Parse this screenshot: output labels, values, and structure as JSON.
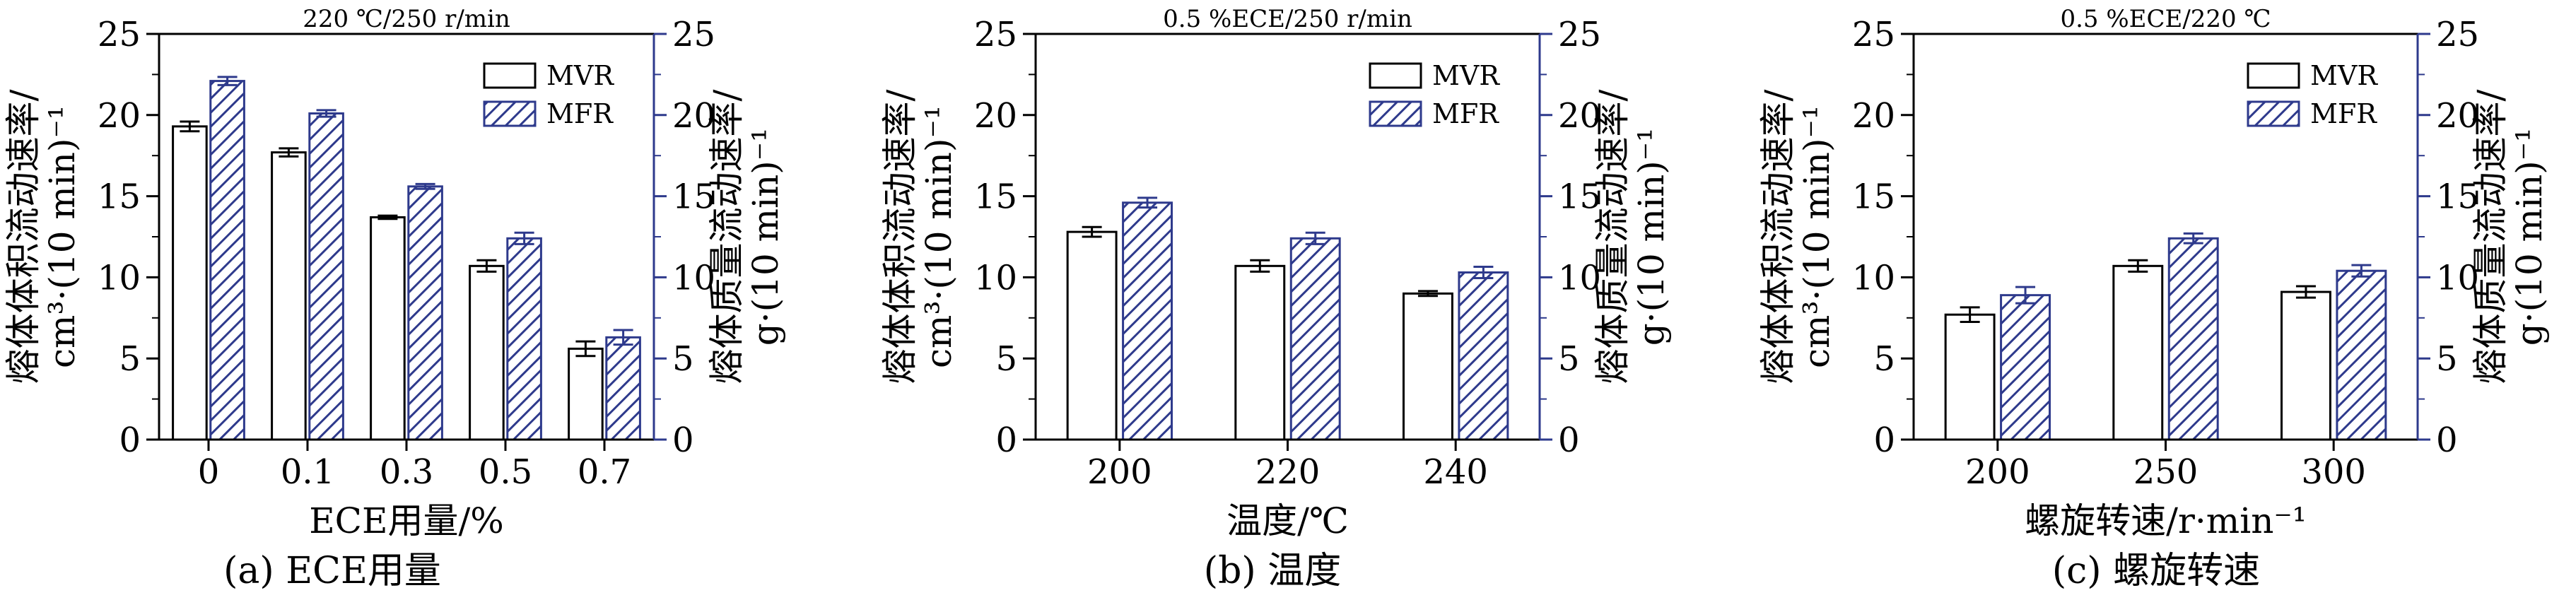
{
  "chart_data": [
    {
      "type": "bar",
      "panel_label": "(a) ECE用量",
      "title": "220 ℃/250 r/min",
      "xlabel": "ECE用量/%",
      "ylabel_left_line1": "熔体体积流动速率/",
      "ylabel_left_line2": "cm³·(10 min)⁻¹",
      "ylabel_right_line1": "熔体质量流动速率/",
      "ylabel_right_line2": "g·(10 min)⁻¹",
      "categories": [
        "0",
        "0.1",
        "0.3",
        "0.5",
        "0.7"
      ],
      "ylim": [
        0,
        25
      ],
      "yticks": [
        "0",
        "5",
        "10",
        "15",
        "20",
        "25"
      ],
      "legend": [
        "MVR",
        "MFR"
      ],
      "series": [
        {
          "name": "MVR",
          "axis": "left",
          "values": [
            19.3,
            17.7,
            13.7,
            10.7,
            5.6
          ],
          "errors": [
            0.3,
            0.25,
            0.1,
            0.35,
            0.45
          ]
        },
        {
          "name": "MFR",
          "axis": "right",
          "values": [
            22.1,
            20.1,
            15.6,
            12.4,
            6.3
          ],
          "errors": [
            0.25,
            0.2,
            0.15,
            0.35,
            0.45
          ]
        }
      ]
    },
    {
      "type": "bar",
      "panel_label": "(b) 温度",
      "title": "0.5 %ECE/250 r/min",
      "xlabel": "温度/℃",
      "ylabel_left_line1": "熔体体积流动速率/",
      "ylabel_left_line2": "cm³·(10 min)⁻¹",
      "ylabel_right_line1": "熔体质量流动速率/",
      "ylabel_right_line2": "g·(10 min)⁻¹",
      "categories": [
        "200",
        "220",
        "240"
      ],
      "ylim": [
        0,
        25
      ],
      "yticks": [
        "0",
        "5",
        "10",
        "15",
        "20",
        "25"
      ],
      "legend": [
        "MVR",
        "MFR"
      ],
      "series": [
        {
          "name": "MVR",
          "axis": "left",
          "values": [
            12.8,
            10.7,
            9.0
          ],
          "errors": [
            0.3,
            0.35,
            0.15
          ]
        },
        {
          "name": "MFR",
          "axis": "right",
          "values": [
            14.6,
            12.4,
            10.3
          ],
          "errors": [
            0.3,
            0.35,
            0.35
          ]
        }
      ]
    },
    {
      "type": "bar",
      "panel_label": "(c) 螺旋转速",
      "title": "0.5 %ECE/220 ℃",
      "xlabel": "螺旋转速/r·min⁻¹",
      "ylabel_left_line1": "熔体体积流动速率/",
      "ylabel_left_line2": "cm³·(10 min)⁻¹",
      "ylabel_right_line1": "熔体质量流动速率/",
      "ylabel_right_line2": "g·(10 min)⁻¹",
      "categories": [
        "200",
        "250",
        "300"
      ],
      "ylim": [
        0,
        25
      ],
      "yticks": [
        "0",
        "5",
        "10",
        "15",
        "20",
        "25"
      ],
      "legend": [
        "MVR",
        "MFR"
      ],
      "series": [
        {
          "name": "MVR",
          "axis": "left",
          "values": [
            7.7,
            10.7,
            9.1
          ],
          "errors": [
            0.45,
            0.35,
            0.35
          ]
        },
        {
          "name": "MFR",
          "axis": "right",
          "values": [
            8.9,
            12.4,
            10.4
          ],
          "errors": [
            0.5,
            0.3,
            0.35
          ]
        }
      ]
    }
  ]
}
